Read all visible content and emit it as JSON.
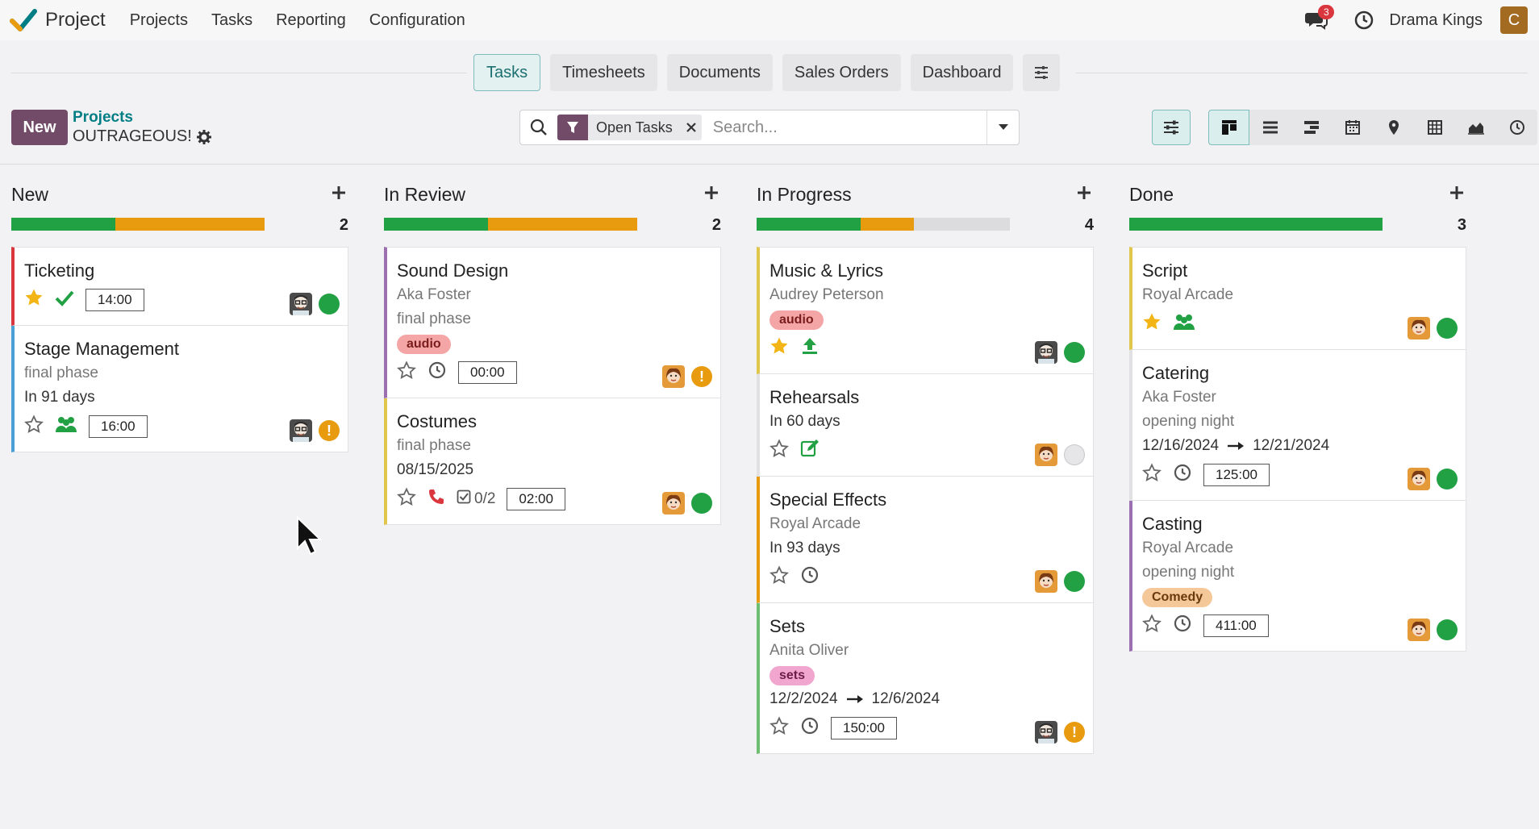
{
  "app": {
    "name": "Project",
    "menu": [
      "Projects",
      "Tasks",
      "Reporting",
      "Configuration"
    ],
    "chat_count": "3",
    "company": "Drama Kings",
    "user_initial": "C"
  },
  "tabs": [
    "Tasks",
    "Timesheets",
    "Documents",
    "Sales Orders",
    "Dashboard"
  ],
  "control": {
    "new_label": "New",
    "breadcrumb_parent": "Projects",
    "breadcrumb_current": "OUTRAGEOUS!",
    "facet_label": "Open Tasks",
    "search_placeholder": "Search..."
  },
  "colors": {
    "accent": "#714b67",
    "teal": "#017e84",
    "green": "#21a144",
    "orange": "#e89b0f",
    "red": "#d9363e"
  },
  "columns": [
    {
      "title": "New",
      "count": "2",
      "progress": {
        "green": 0.41,
        "orange": 0.59
      },
      "cards": [
        {
          "title": "Ticketing",
          "border": "#d9363e",
          "starred": true,
          "activity": "check-icon",
          "time": "14:00",
          "avatar": "man",
          "state": "green"
        },
        {
          "title": "Stage Management",
          "lines": [
            "final phase"
          ],
          "deadline": "In 91 days",
          "border": "#4a9fd6",
          "starred": false,
          "activity": "people-icon",
          "time": "16:00",
          "avatar": "man",
          "state": "warn"
        }
      ]
    },
    {
      "title": "In Review",
      "count": "2",
      "progress": {
        "green": 0.41,
        "orange": 0.59
      },
      "cards": [
        {
          "title": "Sound Design",
          "customer": "Aka Foster",
          "lines": [
            "final phase"
          ],
          "tag": {
            "label": "audio",
            "bg": "#f4a6a6",
            "fg": "#7a1c1c"
          },
          "border": "#9b6fb0",
          "starred": false,
          "activity": "clock-icon",
          "time": "00:00",
          "avatar": "woman",
          "state": "warn"
        },
        {
          "title": "Costumes",
          "lines": [
            "final phase"
          ],
          "deadline": "08/15/2025",
          "border": "#e0c64b",
          "starred": false,
          "activity": "phone-icon",
          "subtasks": "0/2",
          "time": "02:00",
          "avatar": "woman",
          "state": "green"
        }
      ]
    },
    {
      "title": "In Progress",
      "count": "4",
      "progress": {
        "green": 0.41,
        "orange": 0.21
      },
      "cards": [
        {
          "title": "Music & Lyrics",
          "customer": "Audrey Peterson",
          "tag": {
            "label": "audio",
            "bg": "#f4a6a6",
            "fg": "#7a1c1c"
          },
          "border": "#e0c64b",
          "starred": true,
          "activity": "upload-icon",
          "avatar": "man",
          "state": "green"
        },
        {
          "title": "Rehearsals",
          "deadline": "In 60 days",
          "border": "#e1e1e4",
          "starred": false,
          "activity": "edit-icon",
          "avatar": "woman",
          "state": "grey"
        },
        {
          "title": "Special Effects",
          "customer": "Royal Arcade",
          "deadline": "In 93 days",
          "border": "#e89b0f",
          "starred": false,
          "activity": "clock-icon",
          "avatar": "woman",
          "state": "green"
        },
        {
          "title": "Sets",
          "customer": "Anita Oliver",
          "tag": {
            "label": "sets",
            "bg": "#f0a6cf",
            "fg": "#6e1c4a"
          },
          "dates": [
            "12/2/2024",
            "12/6/2024"
          ],
          "border": "#6fbf73",
          "starred": false,
          "activity": "clock-icon",
          "time": "150:00",
          "avatar": "man",
          "state": "warn"
        }
      ]
    },
    {
      "title": "Done",
      "count": "3",
      "progress": {
        "green": 1.0,
        "orange": 0
      },
      "cards": [
        {
          "title": "Script",
          "customer": "Royal Arcade",
          "border": "#e0c64b",
          "starred": true,
          "activity": "people-icon",
          "avatar": "woman",
          "state": "green"
        },
        {
          "title": "Catering",
          "customer": "Aka Foster",
          "lines": [
            "opening night"
          ],
          "dates": [
            "12/16/2024",
            "12/21/2024"
          ],
          "border": "#e1e1e4",
          "starred": false,
          "activity": "clock-icon",
          "time": "125:00",
          "avatar": "woman",
          "state": "green"
        },
        {
          "title": "Casting",
          "customer": "Royal Arcade",
          "lines": [
            "opening night"
          ],
          "tag": {
            "label": "Comedy",
            "bg": "#f5c89a",
            "fg": "#6b3a0c"
          },
          "border": "#9b6fb0",
          "starred": false,
          "activity": "clock-icon",
          "time": "411:00",
          "avatar": "woman",
          "state": "green"
        }
      ]
    }
  ]
}
